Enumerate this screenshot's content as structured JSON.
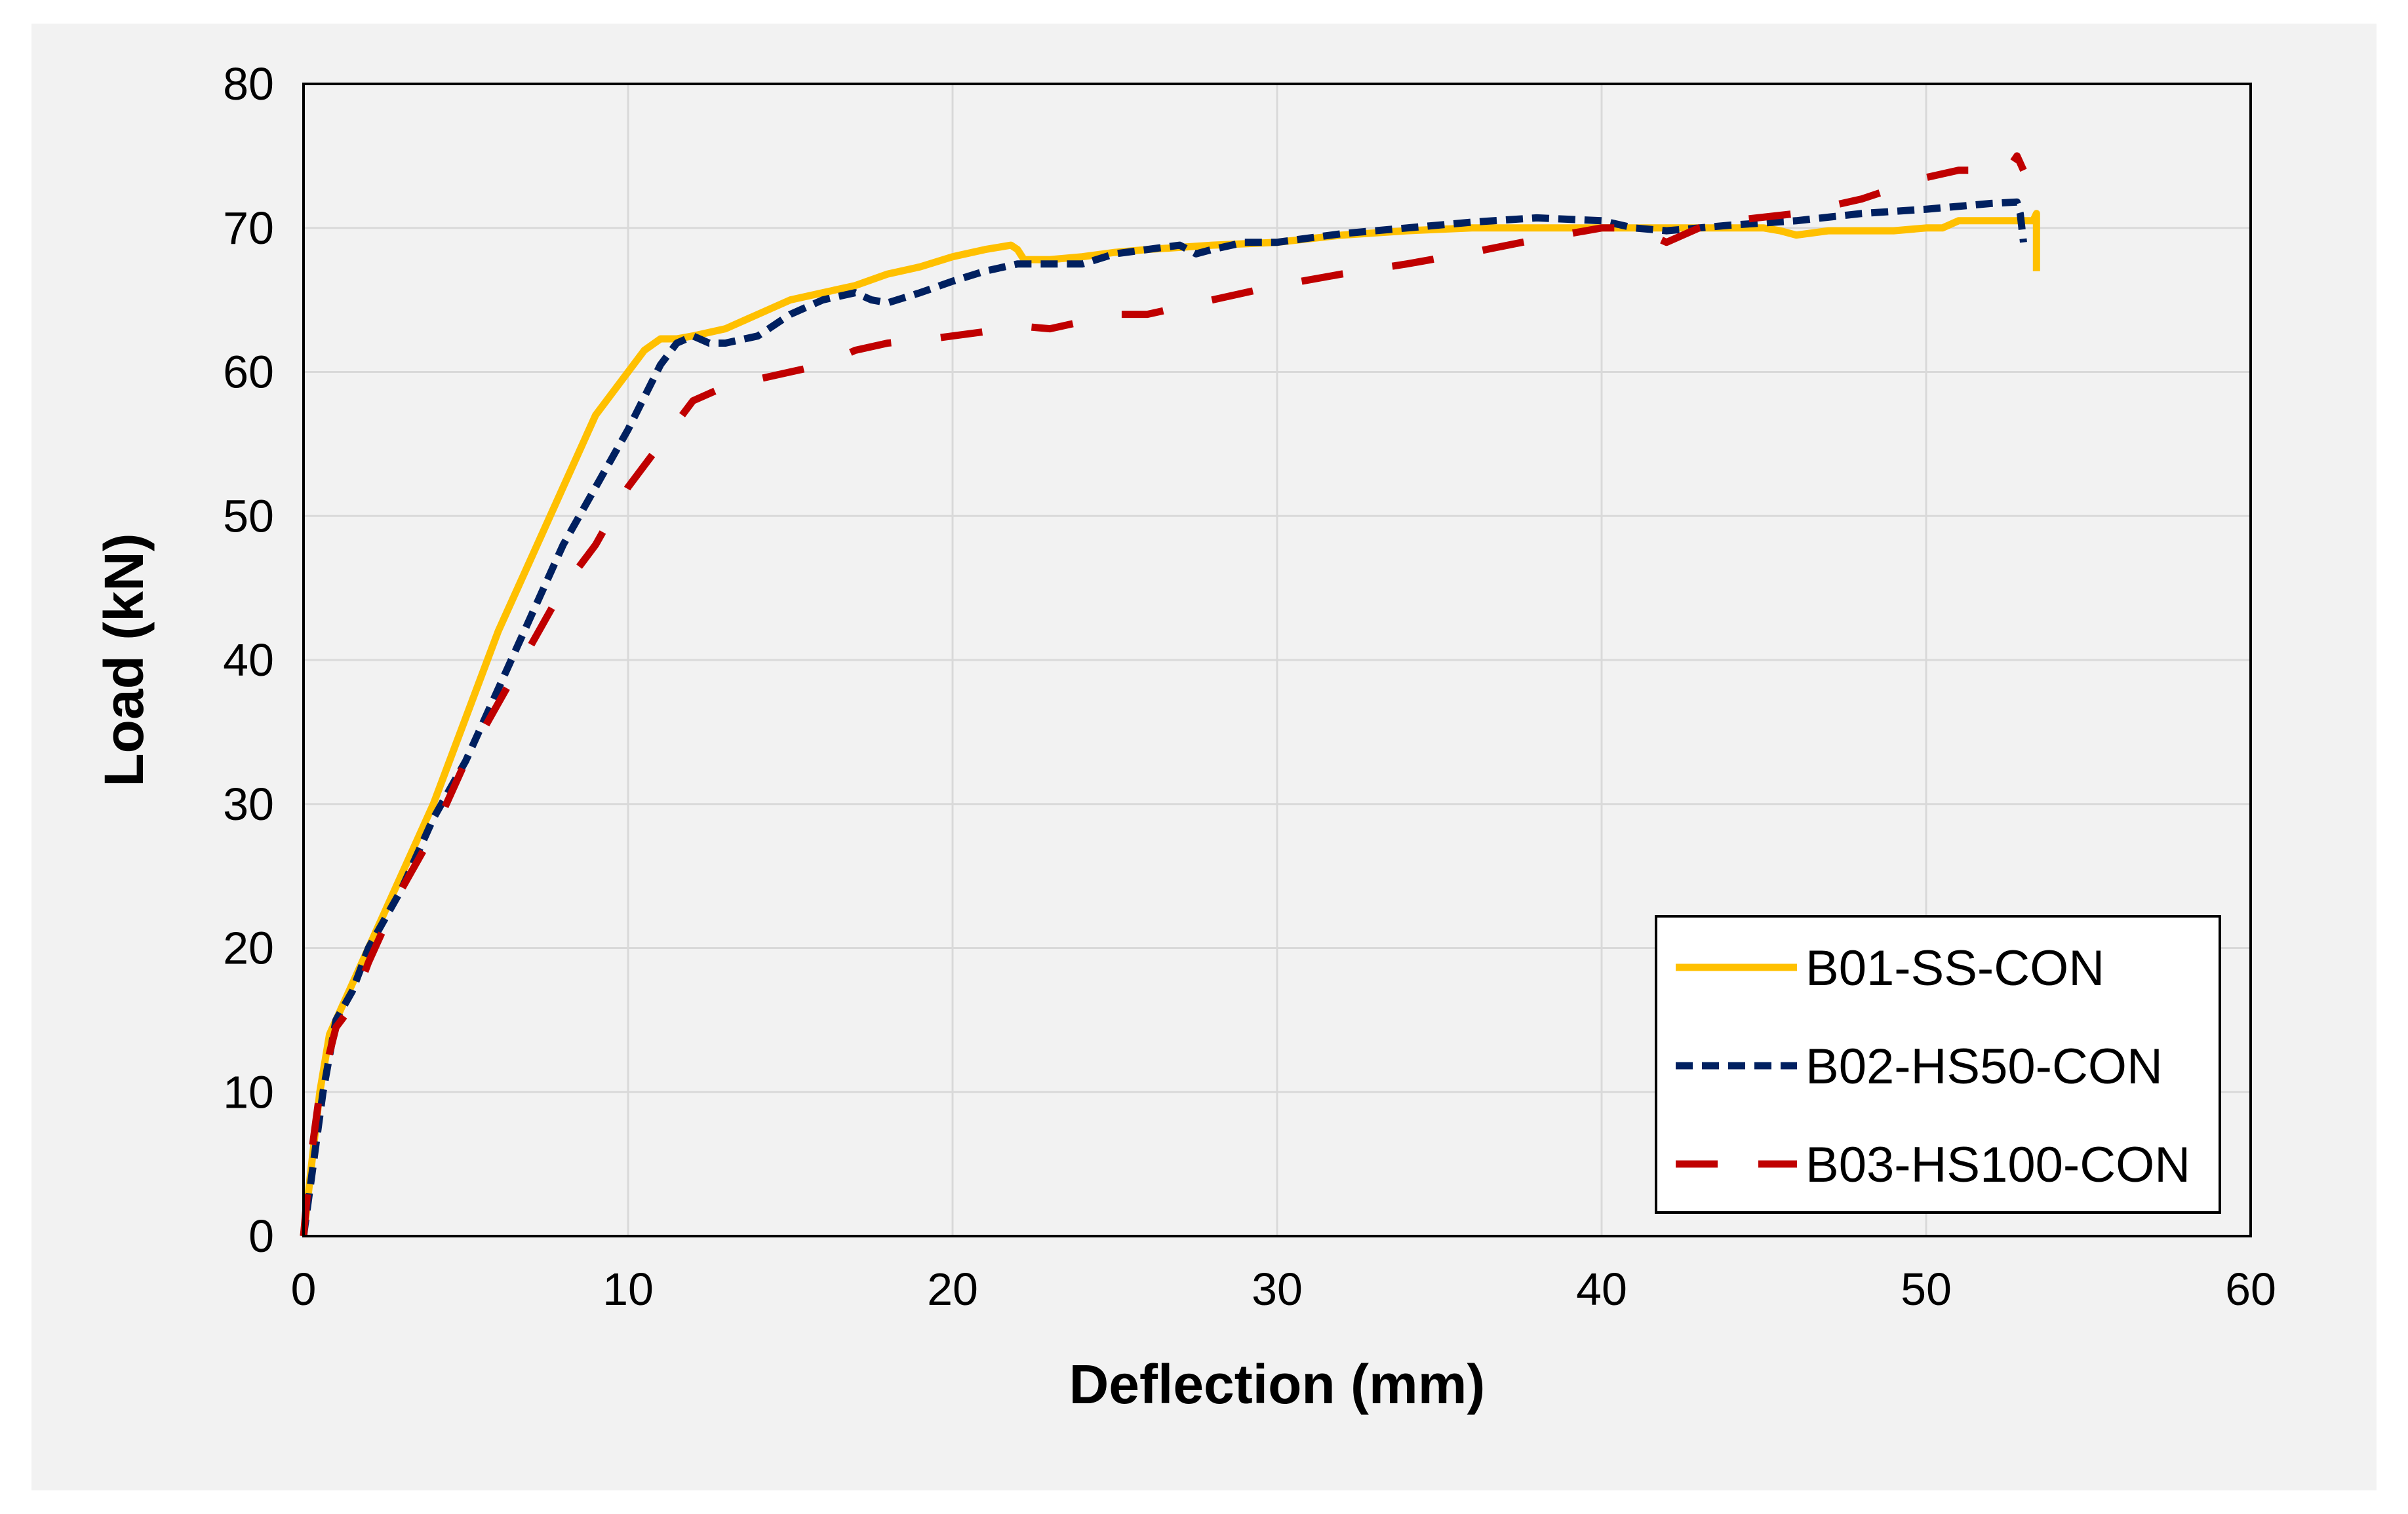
{
  "chart_data": {
    "type": "line",
    "title": "",
    "xlabel": "Deflection (mm)",
    "ylabel": "Load (kN)",
    "xlim": [
      0,
      60
    ],
    "ylim": [
      0,
      80
    ],
    "xticks": [
      "0",
      "10",
      "20",
      "30",
      "40",
      "50",
      "60"
    ],
    "yticks": [
      "0",
      "10",
      "20",
      "30",
      "40",
      "50",
      "60",
      "70",
      "80"
    ],
    "grid": true,
    "legend_position": "bottom-right",
    "series": [
      {
        "name": "B01-SS-CON",
        "color": "#ffc000",
        "style": "solid",
        "x": [
          0,
          0.2,
          0.5,
          0.8,
          1.2,
          2,
          3,
          4,
          5,
          6,
          7,
          8,
          9,
          10,
          10.5,
          11,
          11.5,
          12,
          13,
          14,
          15,
          16,
          17,
          18,
          19,
          20,
          21,
          21.8,
          22,
          22.2,
          23,
          24,
          25,
          26,
          28,
          30,
          32,
          34,
          36,
          38,
          40,
          42,
          44,
          45,
          45.5,
          46,
          47,
          48,
          49,
          50,
          50.5,
          51,
          52,
          53,
          53.3,
          53.4,
          53.4,
          53.4
        ],
        "y": [
          0,
          4,
          10,
          14,
          16,
          20,
          25,
          30,
          36,
          42,
          47,
          52,
          57,
          60,
          61.5,
          62.3,
          62.3,
          62.5,
          63,
          64,
          65,
          65.5,
          66,
          66.8,
          67.3,
          68,
          68.5,
          68.8,
          68.5,
          67.8,
          67.8,
          68,
          68.3,
          68.5,
          68.8,
          69,
          69.5,
          69.8,
          70,
          70,
          70,
          70,
          70,
          70,
          69.8,
          69.5,
          69.8,
          69.8,
          69.8,
          70,
          70,
          70.5,
          70.5,
          70.5,
          70.5,
          71,
          68,
          67
        ]
      },
      {
        "name": "B02-HS50-CON",
        "color": "#002060",
        "style": "dashed",
        "x": [
          0,
          0.3,
          0.6,
          1,
          1.5,
          2,
          3,
          4,
          5,
          6,
          7,
          8,
          9,
          10,
          11,
          11.5,
          12,
          12.5,
          13,
          14,
          15,
          16,
          17,
          17.5,
          18,
          19,
          20,
          21,
          22,
          23,
          24,
          25,
          26,
          27,
          27.5,
          28,
          29,
          30,
          32,
          34,
          36,
          38,
          40,
          41,
          42,
          43,
          44,
          46,
          48,
          50,
          52,
          52.8,
          52.9,
          53
        ],
        "y": [
          0,
          5,
          10,
          15,
          17,
          20,
          24,
          29,
          33,
          38,
          43,
          48,
          52,
          56,
          60.5,
          62,
          62.5,
          62,
          62,
          62.5,
          64,
          65,
          65.5,
          65,
          64.8,
          65.5,
          66.3,
          67,
          67.5,
          67.5,
          67.5,
          68.2,
          68.5,
          68.8,
          68.2,
          68.5,
          69,
          69,
          69.6,
          70,
          70.4,
          70.7,
          70.5,
          70,
          69.8,
          70,
          70.2,
          70.5,
          71,
          71.3,
          71.7,
          71.8,
          71,
          69
        ]
      },
      {
        "name": "B03-HS100-CON",
        "color": "#c00000",
        "style": "long-dashed",
        "x": [
          0,
          0.2,
          0.5,
          1,
          1.5,
          2,
          3,
          4,
          5,
          6,
          7,
          8,
          9,
          10,
          11,
          12,
          13,
          14,
          15,
          16,
          17,
          18,
          19,
          20,
          21,
          22,
          23,
          24,
          25,
          26,
          27,
          28,
          30,
          32,
          34,
          36,
          38,
          40,
          41,
          41.5,
          42,
          43,
          44,
          46,
          48,
          50,
          51,
          52.5,
          52.8,
          53
        ],
        "y": [
          0,
          5,
          10,
          14.5,
          16,
          19,
          24,
          28,
          33,
          37,
          41,
          45,
          48,
          52,
          55,
          58,
          59,
          59.5,
          60,
          60.5,
          61.5,
          62,
          62.2,
          62.5,
          62.8,
          63.2,
          63,
          63.5,
          64,
          64,
          64.5,
          65,
          66,
          66.8,
          67.5,
          68.3,
          69.2,
          70,
          70,
          69.5,
          69,
          70,
          70.5,
          71,
          72,
          73.5,
          74,
          74,
          75,
          74
        ]
      }
    ]
  }
}
